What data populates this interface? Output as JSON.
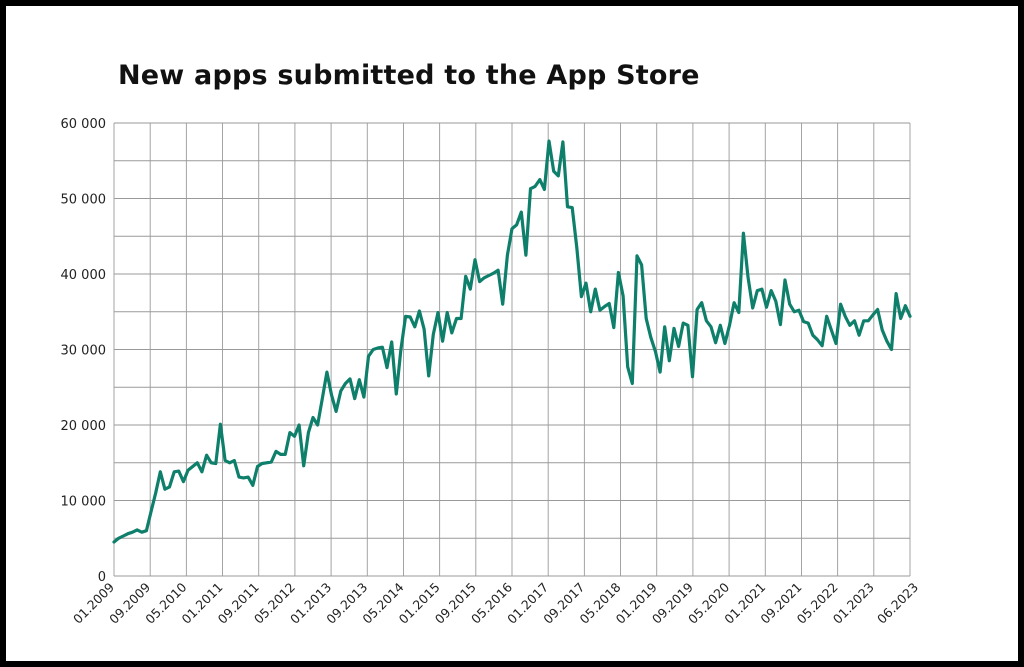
{
  "chart_data": {
    "type": "line",
    "title": "New apps submitted to the App Store",
    "xlabel": "",
    "ylabel": "",
    "ylim": [
      0,
      60000
    ],
    "y_tick_labels": [
      "0",
      "10 000",
      "20 000",
      "30 000",
      "40 000",
      "50 000",
      "60 000"
    ],
    "x_tick_labels": [
      "01.2009",
      "09.2009",
      "05.2010",
      "01.2011",
      "09.2011",
      "05.2012",
      "01.2013",
      "09.2013",
      "05.2014",
      "01.2015",
      "09.2015",
      "05.2016",
      "01.2017",
      "09.2017",
      "05.2018",
      "01.2019",
      "09.2019",
      "05.2020",
      "01.2021",
      "09.2021",
      "05.2022",
      "01.2023",
      "06.2023"
    ],
    "grid": true,
    "legend": "none",
    "line_color": "#0e7f6b",
    "series": [
      {
        "values": [
          4500,
          5000,
          5300,
          5600,
          5800,
          6100,
          5800,
          6000,
          8500,
          11000,
          13800,
          11500,
          11800,
          13800,
          13900,
          12500,
          14000,
          14500,
          15000,
          13800,
          16000,
          15000,
          14900,
          20100,
          15300,
          15000,
          15300,
          13100,
          13000,
          13100,
          12000,
          14500,
          14900,
          15000,
          15100,
          16500,
          16100,
          16100,
          19000,
          18500,
          20000,
          14600,
          19000,
          21000,
          20000,
          23500,
          27000,
          24000,
          21800,
          24500,
          25500,
          26100,
          23500,
          26000,
          23700,
          29100,
          30000,
          30200,
          30300,
          27600,
          31000,
          24100,
          30000,
          34400,
          34300,
          33000,
          35100,
          32700,
          26500,
          32000,
          34900,
          31100,
          34900,
          32200,
          34100,
          34100,
          39700,
          38000,
          41900,
          39000,
          39500,
          39800,
          40100,
          40500,
          36000,
          42500,
          46000,
          46500,
          48200,
          42500,
          51300,
          51600,
          52500,
          51200,
          57600,
          53600,
          53000,
          57500,
          48900,
          48800,
          43500,
          37000,
          38800,
          35000,
          38000,
          35200,
          35700,
          36100,
          32900,
          40200,
          37100,
          27700,
          25500,
          42400,
          41200,
          34100,
          31600,
          29700,
          27000,
          33000,
          28500,
          32800,
          30400,
          33500,
          33200,
          26400,
          35300,
          36200,
          33800,
          33000,
          30900,
          33200,
          30800,
          33200,
          36200,
          34900,
          45400,
          39600,
          35500,
          37800,
          38000,
          35600,
          37800,
          36400,
          33300,
          39200,
          36000,
          35000,
          35200,
          33700,
          33500,
          31900,
          31300,
          30500,
          34400,
          32600,
          30800,
          36000,
          34400,
          33200,
          33800,
          31900,
          33800,
          33800,
          34600,
          35300,
          32600,
          31100,
          30000,
          37400,
          34100,
          35800,
          34400
        ]
      }
    ]
  }
}
